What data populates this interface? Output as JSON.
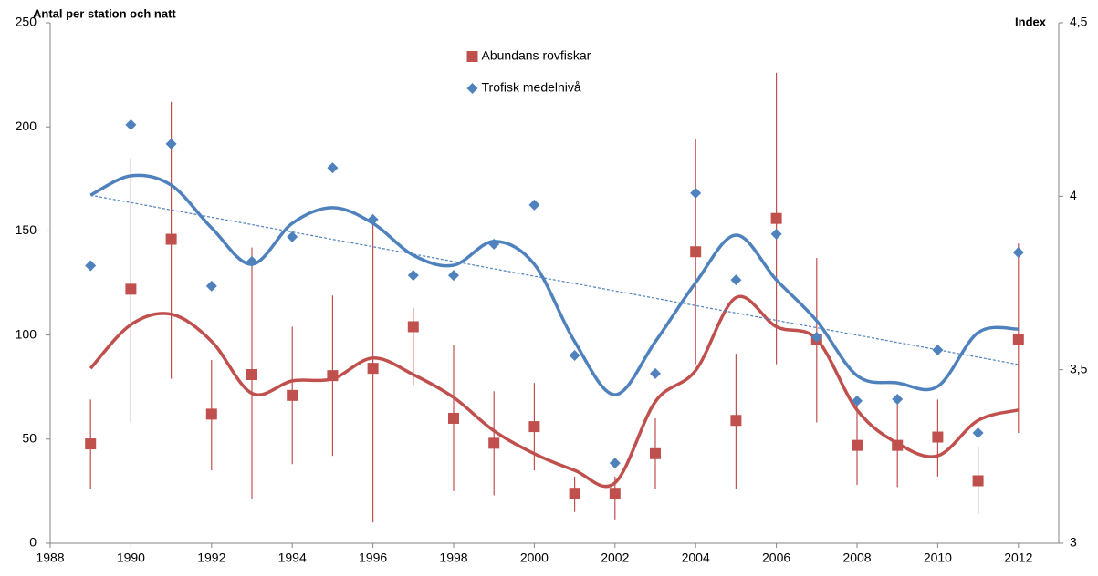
{
  "chart_data": {
    "type": "scatter",
    "y_label": "Antal per station och natt",
    "y2_label": "Index",
    "x": [
      1989,
      1990,
      1991,
      1992,
      1993,
      1994,
      1995,
      1996,
      1997,
      1998,
      1999,
      2000,
      2001,
      2002,
      2003,
      2004,
      2005,
      2006,
      2007,
      2008,
      2009,
      2010,
      2011,
      2012
    ],
    "xlim": [
      1988,
      2013
    ],
    "xticks": [
      1988,
      1990,
      1992,
      1994,
      1996,
      1998,
      2000,
      2002,
      2004,
      2006,
      2008,
      2010,
      2012
    ],
    "ylim": [
      0,
      250
    ],
    "yticks": [
      0,
      50,
      100,
      150,
      200,
      250
    ],
    "y2lim": [
      3,
      4.5
    ],
    "y2ticks": [
      3,
      {
        "value": 3.5,
        "label": "3,5"
      },
      4,
      {
        "value": 4.5,
        "label": "4,5"
      }
    ],
    "legend": "upper center",
    "series": [
      {
        "name": "Abundans rovfiskar",
        "color": "#c0504d",
        "marker": "square",
        "values": [
          47.7,
          122,
          146,
          62,
          81,
          71,
          80.5,
          84,
          104,
          60,
          48,
          56,
          24,
          24,
          43,
          140,
          59,
          156,
          98,
          47,
          47,
          51,
          30,
          98
        ],
        "lower": [
          26,
          58,
          79,
          35,
          21,
          38,
          42,
          10,
          76,
          25,
          23,
          35,
          15,
          11,
          26,
          86,
          26,
          86,
          58,
          28,
          27,
          32,
          14,
          53
        ],
        "upper": [
          69,
          185,
          212,
          88,
          142,
          104,
          119,
          156,
          113,
          95,
          73,
          77,
          32,
          32,
          60,
          194,
          91,
          226,
          137,
          70,
          68,
          69,
          46,
          144
        ],
        "smooth": [
          84,
          105,
          110,
          97,
          72,
          78,
          79,
          89,
          81,
          70,
          54,
          43,
          35,
          29,
          68,
          83,
          118,
          104,
          98,
          64,
          48,
          42,
          59,
          64
        ]
      },
      {
        "name": "Trofisk medelnivå",
        "color": "#4f81bd",
        "marker": "diamond",
        "axis": "y2",
        "values": [
          3.8,
          4.206,
          4.151,
          3.741,
          3.812,
          3.883,
          4.082,
          3.933,
          3.772,
          3.772,
          3.862,
          3.975,
          3.541,
          3.231,
          3.489,
          4.009,
          3.759,
          3.891,
          3.594,
          3.41,
          3.415,
          3.557,
          3.318,
          3.838
        ],
        "smooth": [
          4.003,
          4.059,
          4.032,
          3.909,
          3.804,
          3.922,
          3.967,
          3.922,
          3.83,
          3.801,
          3.87,
          3.804,
          3.581,
          3.428,
          3.581,
          3.751,
          3.888,
          3.759,
          3.641,
          3.483,
          3.462,
          3.452,
          3.607,
          3.617
        ],
        "trend": {
          "x": [
            1989,
            2012
          ],
          "values": [
            4.003,
            3.515
          ]
        }
      }
    ]
  }
}
